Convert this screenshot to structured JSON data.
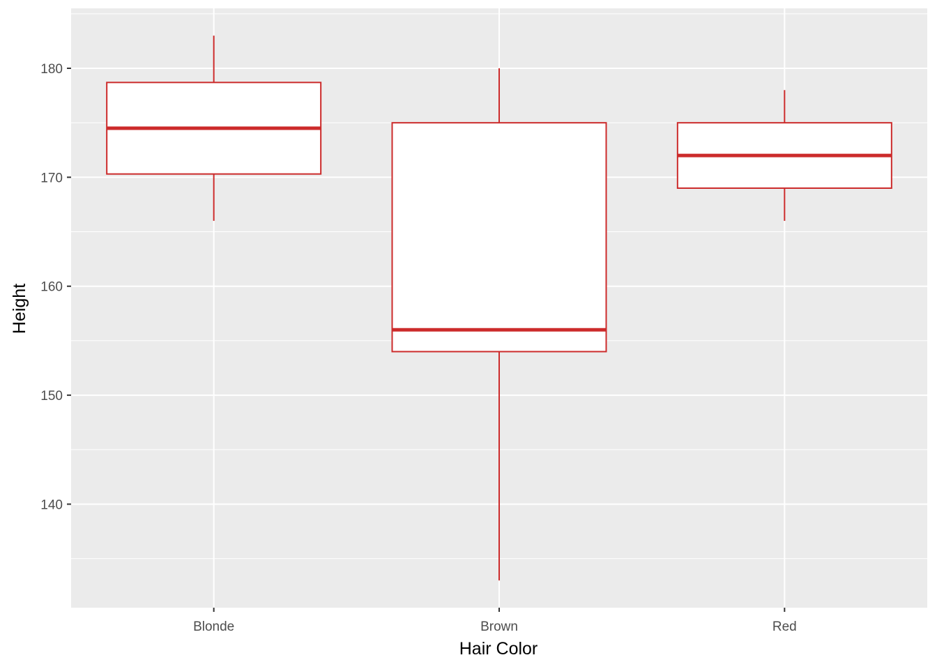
{
  "chart_data": {
    "type": "boxplot",
    "title": "",
    "xlabel": "Hair Color",
    "ylabel": "Height",
    "categories": [
      "Blonde",
      "Brown",
      "Red"
    ],
    "boxes": [
      {
        "category": "Blonde",
        "min": 166,
        "q1": 170.3,
        "median": 174.5,
        "q3": 178.7,
        "max": 183
      },
      {
        "category": "Brown",
        "min": 133,
        "q1": 154,
        "median": 156,
        "q3": 175,
        "max": 180
      },
      {
        "category": "Red",
        "min": 166,
        "q1": 169,
        "median": 172,
        "q3": 175,
        "max": 178
      }
    ],
    "y_ticks": [
      140,
      150,
      160,
      170,
      180
    ],
    "y_minor_ticks": [
      135,
      145,
      155,
      165,
      175,
      185
    ],
    "ylim": [
      130.5,
      185.5
    ],
    "grid": true,
    "legend": "none",
    "colors": {
      "panel": "#EBEBEB",
      "grid": "#FFFFFF",
      "box_outline": "#CC2B2B",
      "box_fill": "#FFFFFF",
      "tick_text": "#4D4D4D",
      "axis_title": "#000000"
    }
  }
}
